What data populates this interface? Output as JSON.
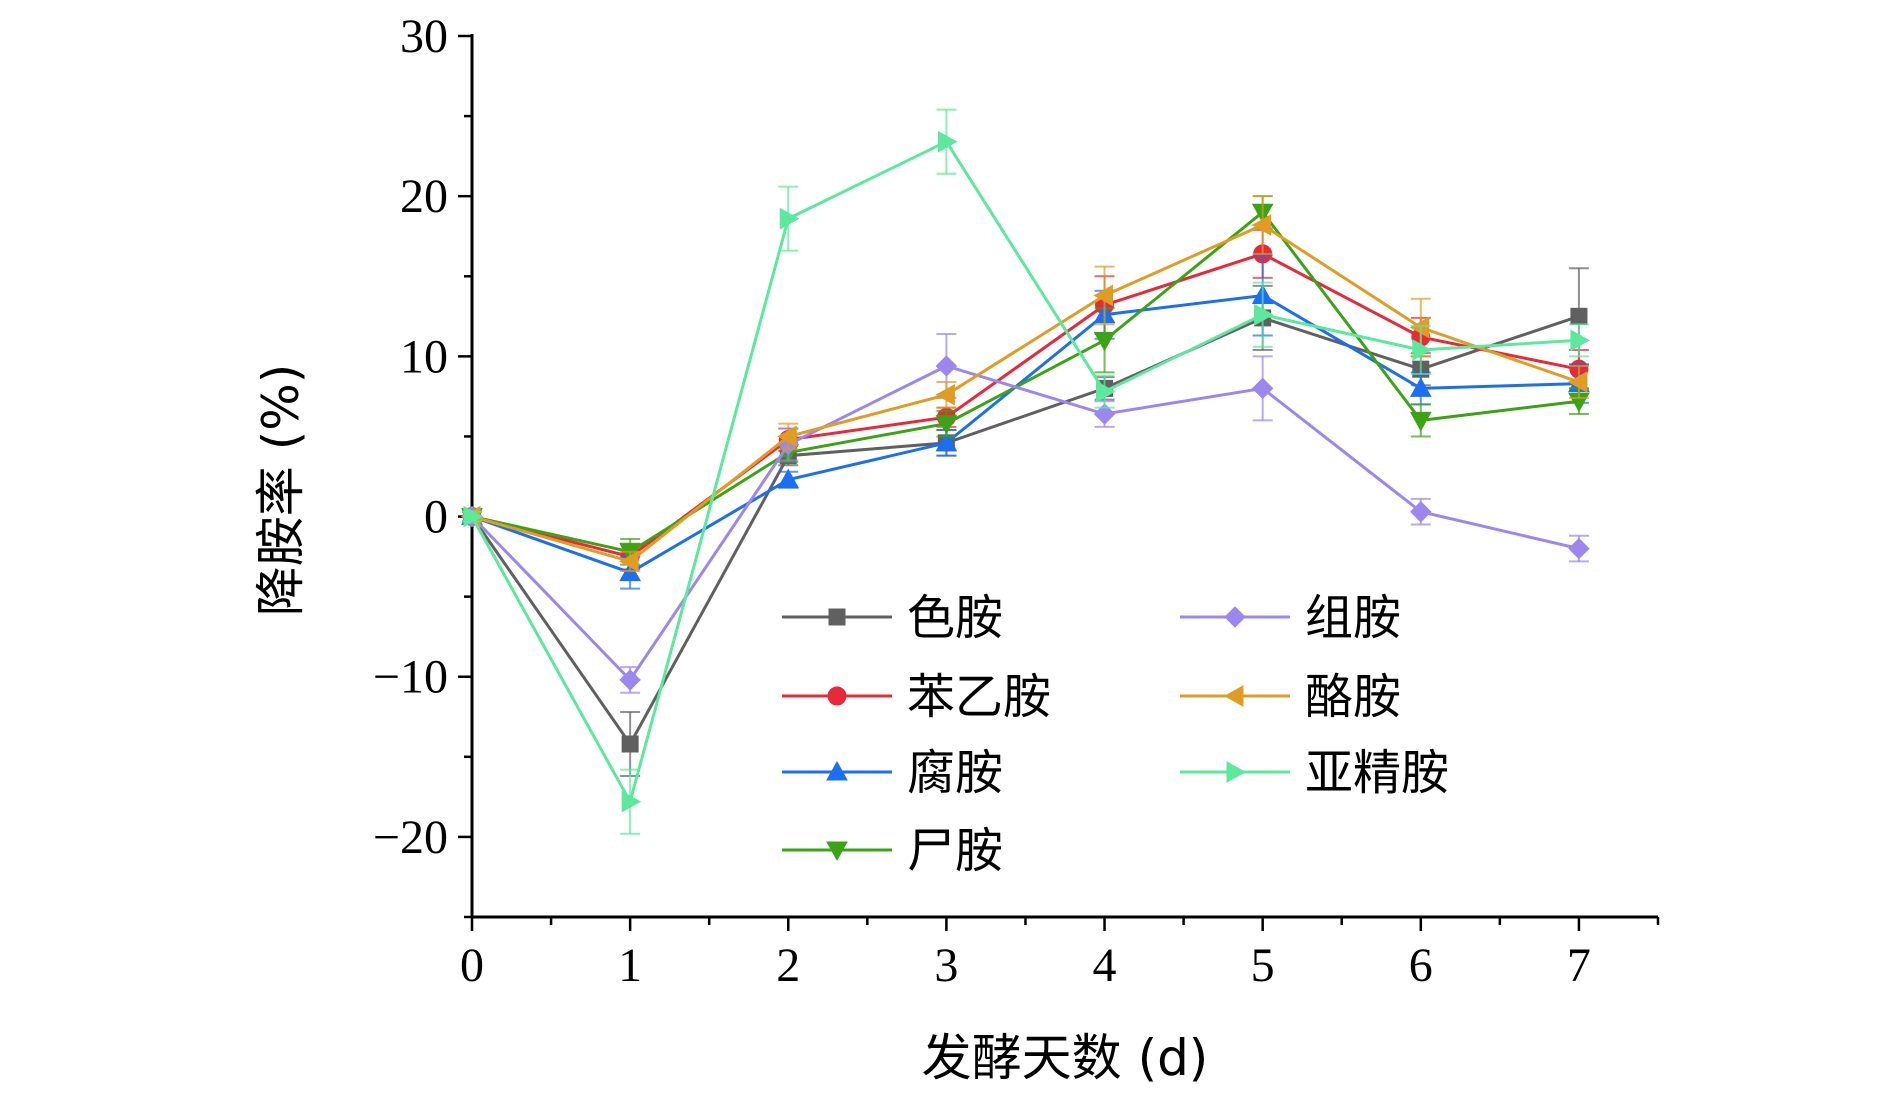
{
  "chart_data": {
    "type": "line",
    "xlabel": "发酵天数 (d)",
    "ylabel": "降胺率 (%)",
    "x": [
      0,
      1,
      2,
      3,
      4,
      5,
      6,
      7
    ],
    "xlim": [
      0,
      7.5
    ],
    "ylim": [
      -25,
      30
    ],
    "xticks": [
      0,
      1,
      2,
      3,
      4,
      5,
      6,
      7
    ],
    "yticks": [
      30,
      20,
      10,
      0,
      -10,
      -20
    ],
    "ytick_labels": [
      "30",
      "20",
      "10",
      "0",
      "−10",
      "−20"
    ],
    "legend_position": "center-right inside plot, two columns",
    "series": [
      {
        "name": "色胺",
        "color": "#606060",
        "marker": "square",
        "values": [
          0,
          -14.2,
          3.8,
          4.6,
          8.0,
          12.4,
          9.2,
          12.5
        ],
        "errors": [
          0.3,
          2.0,
          0.6,
          0.8,
          0.7,
          2.0,
          1.0,
          3.0
        ]
      },
      {
        "name": "苯乙胺",
        "color": "#e8293a",
        "marker": "circle",
        "values": [
          0,
          -2.5,
          4.8,
          6.2,
          13.2,
          16.4,
          11.2,
          9.2
        ],
        "errors": [
          0.3,
          0.8,
          0.7,
          0.6,
          1.8,
          1.5,
          1.2,
          1.2
        ]
      },
      {
        "name": "腐胺",
        "color": "#1b6ff0",
        "marker": "triangle-up",
        "values": [
          0,
          -3.5,
          2.3,
          4.6,
          12.6,
          13.8,
          8.0,
          8.3
        ],
        "errors": [
          0.3,
          1.0,
          0.5,
          0.8,
          1.5,
          2.5,
          1.0,
          1.2
        ]
      },
      {
        "name": "尸胺",
        "color": "#3aa415",
        "marker": "triangle-down",
        "values": [
          0,
          -2.2,
          4.0,
          5.8,
          11.0,
          19.0,
          6.0,
          7.2
        ],
        "errors": [
          0.3,
          0.8,
          0.6,
          0.8,
          2.0,
          1.0,
          1.0,
          0.8
        ]
      },
      {
        "name": "组胺",
        "color": "#9c86f0",
        "marker": "diamond",
        "values": [
          0,
          -10.2,
          4.5,
          9.4,
          6.4,
          8.0,
          0.3,
          -2.0
        ],
        "errors": [
          0.3,
          0.8,
          1.0,
          2.0,
          0.8,
          2.0,
          0.8,
          0.8
        ]
      },
      {
        "name": "酪胺",
        "color": "#e09c23",
        "marker": "triangle-left",
        "values": [
          0,
          -2.8,
          5.0,
          7.6,
          13.8,
          18.2,
          11.8,
          8.4
        ],
        "errors": [
          0.3,
          0.6,
          0.8,
          0.8,
          1.8,
          1.8,
          1.8,
          1.0
        ]
      },
      {
        "name": "亚精胺",
        "color": "#5ce89d",
        "marker": "triangle-right",
        "values": [
          0,
          -17.8,
          18.6,
          23.4,
          7.8,
          12.6,
          10.4,
          11.0
        ],
        "errors": [
          0.3,
          2.0,
          2.0,
          2.0,
          1.0,
          2.0,
          1.5,
          1.0
        ]
      }
    ]
  }
}
